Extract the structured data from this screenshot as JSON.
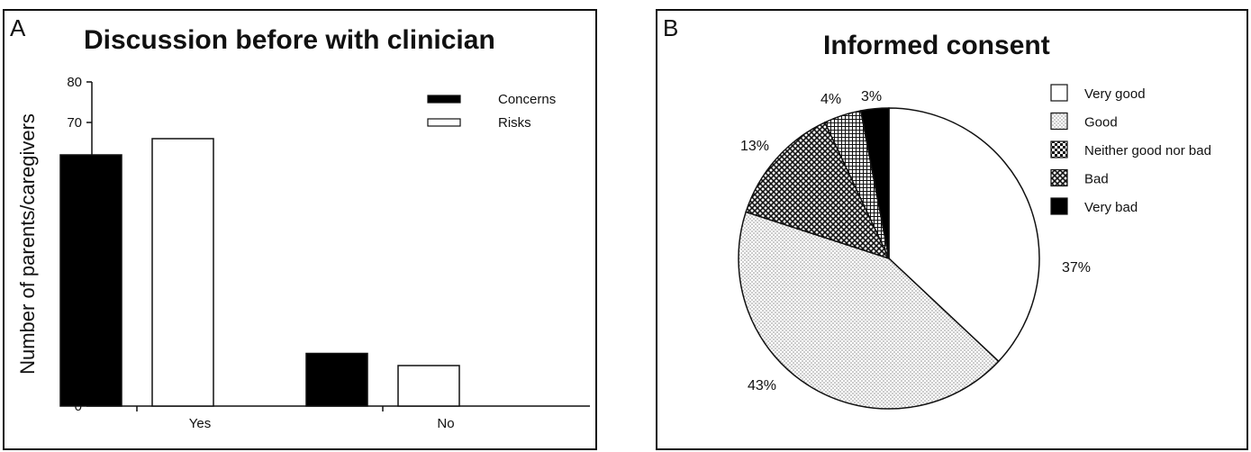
{
  "panels": {
    "a": {
      "letter": "A",
      "title": "Discussion before with clinician"
    },
    "b": {
      "letter": "B",
      "title": "Informed consent"
    }
  },
  "chart_data": [
    {
      "type": "bar",
      "title": "Discussion before with clinician",
      "xlabel": "",
      "ylabel": "Number of parents/caregivers",
      "categories": [
        "Yes",
        "No"
      ],
      "series": [
        {
          "name": "Concerns",
          "values": [
            62,
            13
          ],
          "color": "#000000"
        },
        {
          "name": "Risks",
          "values": [
            66,
            10
          ],
          "color": "#ffffff"
        }
      ],
      "ylim": [
        0,
        80
      ],
      "yticks": [
        0,
        10,
        20,
        30,
        40,
        50,
        60,
        70,
        80
      ],
      "grid": false,
      "legend": "top-right"
    },
    {
      "type": "pie",
      "title": "Informed consent",
      "slices": [
        {
          "label": "Very good",
          "value": 37,
          "display": "37%",
          "pattern": "white"
        },
        {
          "label": "Good",
          "value": 43,
          "display": "43%",
          "pattern": "dots"
        },
        {
          "label": "Neither good nor bad",
          "value": 0,
          "display": "",
          "pattern": "checker"
        },
        {
          "label": "Bad",
          "value": 13,
          "display": "13%",
          "pattern": "crosshatch"
        },
        {
          "label": "Very bad",
          "value": 3,
          "display": "3%",
          "pattern": "black"
        }
      ],
      "extra_slice": {
        "value": 4,
        "display": "4%",
        "pattern": "grid"
      },
      "legend": "right"
    }
  ]
}
